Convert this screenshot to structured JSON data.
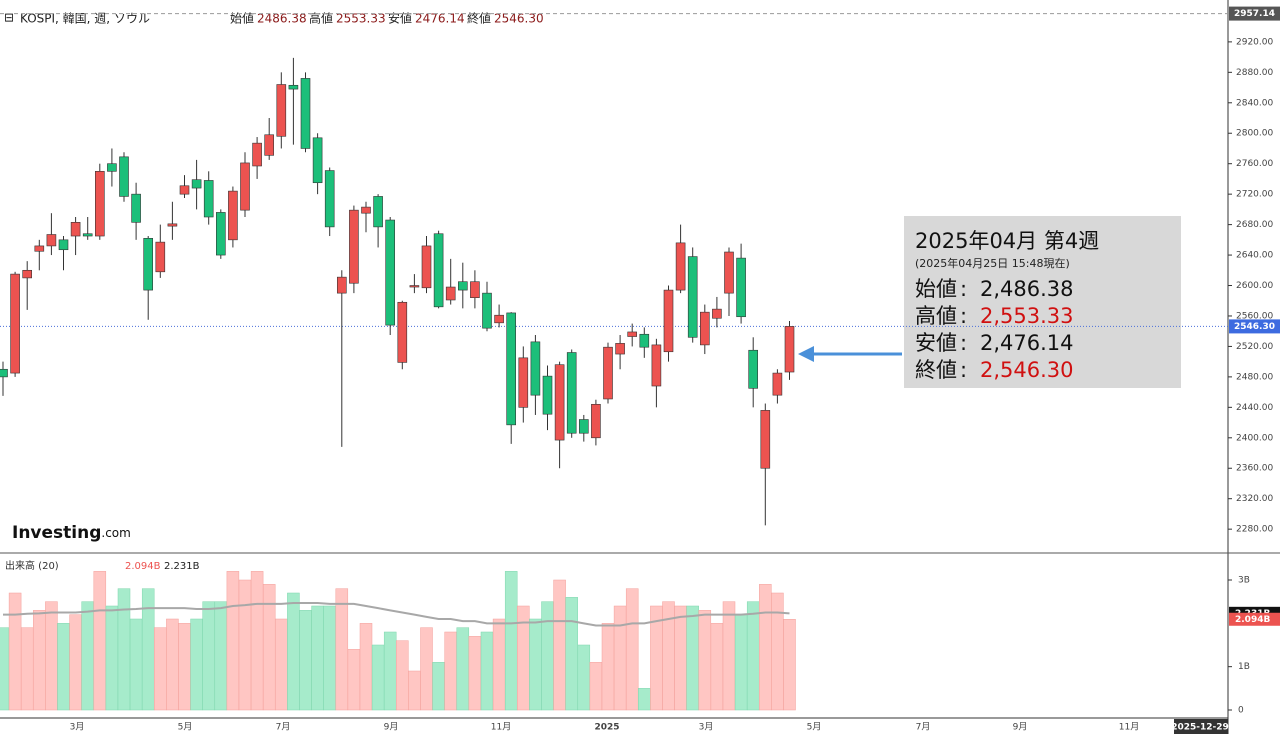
{
  "header": {
    "symbol": "KOSPI, 韓国, 週, ソウル",
    "ohlc": [
      {
        "label": "始値",
        "value": "2486.38"
      },
      {
        "label": "高値",
        "value": "2553.33"
      },
      {
        "label": "安値",
        "value": "2476.14"
      },
      {
        "label": "終値",
        "value": "2546.30"
      }
    ]
  },
  "logo": {
    "brand": "Investing",
    "suffix": ".com"
  },
  "x_labels": [
    "3月",
    "5月",
    "7月",
    "9月",
    "11月",
    "2025",
    "3月",
    "5月",
    "7月",
    "9月",
    "11月",
    "2025-12-29"
  ],
  "tooltip": {
    "title": "2025年04月 第4週",
    "subtitle": "(2025年04月25日 15:48現在)",
    "sep": ":",
    "rows": [
      {
        "label": "始値",
        "value": "2,486.38",
        "color": "#111111"
      },
      {
        "label": "高値",
        "value": "2,553.33",
        "color": "#d01010"
      },
      {
        "label": "安値",
        "value": "2,476.14",
        "color": "#111111"
      },
      {
        "label": "終値",
        "value": "2,546.30",
        "color": "#d01010"
      }
    ]
  },
  "chart_data": [
    {
      "type": "candlestick",
      "up_color": "#ec5350",
      "down_color": "#1cbf7a",
      "ylim": [
        2250,
        2975
      ],
      "yticks": [
        {
          "value": 2920,
          "label": "2920.00"
        },
        {
          "value": 2880,
          "label": "2880.00"
        },
        {
          "value": 2840,
          "label": "2840.00"
        },
        {
          "value": 2800,
          "label": "2800.00"
        },
        {
          "value": 2760,
          "label": "2760.00"
        },
        {
          "value": 2720,
          "label": "2720.00"
        },
        {
          "value": 2680,
          "label": "2680.00"
        },
        {
          "value": 2640,
          "label": "2640.00"
        },
        {
          "value": 2600,
          "label": "2600.00"
        },
        {
          "value": 2560,
          "label": "2560.00"
        },
        {
          "value": 2520,
          "label": "2520.00"
        },
        {
          "value": 2480,
          "label": "2480.00"
        },
        {
          "value": 2440,
          "label": "2440.00"
        },
        {
          "value": 2400,
          "label": "2400.00"
        },
        {
          "value": 2360,
          "label": "2360.00"
        },
        {
          "value": 2320,
          "label": "2320.00"
        },
        {
          "value": 2280,
          "label": "2280.00"
        }
      ],
      "high_marker": {
        "value": 2957.14,
        "label": "2957.14"
      },
      "last_price": {
        "value": 2546.3,
        "label": "2546.30"
      },
      "open": [
        2490,
        2485,
        2610,
        2645,
        2652,
        2660,
        2665,
        2668,
        2665,
        2760,
        2769,
        2720,
        2662,
        2618,
        2678,
        2720,
        2739,
        2738,
        2696,
        2660,
        2699,
        2757,
        2771,
        2796,
        2863,
        2872,
        2794,
        2751,
        2590,
        2603,
        2695,
        2717,
        2686,
        2499,
        2598,
        2597,
        2668,
        2581,
        2605,
        2584,
        2590,
        2551,
        2564,
        2440,
        2526,
        2481,
        2397,
        2512,
        2424,
        2400,
        2451,
        2510,
        2533,
        2536,
        2468,
        2513,
        2594,
        2638,
        2522,
        2557,
        2590,
        2636,
        2515,
        2360,
        2456,
        2486.38
      ],
      "high": [
        2500,
        2618,
        2632,
        2660,
        2695,
        2665,
        2690,
        2690,
        2760,
        2780,
        2775,
        2735,
        2665,
        2680,
        2710,
        2745,
        2765,
        2750,
        2700,
        2730,
        2775,
        2795,
        2820,
        2880,
        2899,
        2880,
        2800,
        2755,
        2620,
        2705,
        2710,
        2720,
        2690,
        2580,
        2615,
        2665,
        2672,
        2635,
        2630,
        2620,
        2605,
        2575,
        2565,
        2520,
        2535,
        2495,
        2500,
        2516,
        2430,
        2450,
        2525,
        2535,
        2550,
        2545,
        2530,
        2600,
        2680,
        2650,
        2575,
        2585,
        2650,
        2655,
        2532,
        2445,
        2490,
        2553.33
      ],
      "low": [
        2455,
        2480,
        2568,
        2620,
        2640,
        2620,
        2640,
        2660,
        2660,
        2730,
        2710,
        2660,
        2555,
        2610,
        2660,
        2715,
        2700,
        2680,
        2635,
        2650,
        2690,
        2740,
        2765,
        2780,
        2785,
        2775,
        2720,
        2665,
        2388,
        2590,
        2670,
        2650,
        2535,
        2490,
        2590,
        2590,
        2570,
        2575,
        2570,
        2570,
        2540,
        2545,
        2392,
        2420,
        2430,
        2410,
        2360,
        2400,
        2395,
        2390,
        2445,
        2490,
        2520,
        2505,
        2440,
        2500,
        2590,
        2525,
        2510,
        2545,
        2560,
        2550,
        2440,
        2285,
        2445,
        2476.14
      ],
      "close": [
        2480,
        2615,
        2620,
        2652,
        2667,
        2647,
        2683,
        2665,
        2750,
        2750,
        2717,
        2683,
        2594,
        2657,
        2681,
        2731,
        2728,
        2690,
        2640,
        2724,
        2761,
        2787,
        2798,
        2864,
        2858,
        2780,
        2735,
        2677,
        2611,
        2699,
        2703,
        2677,
        2548,
        2578,
        2600,
        2652,
        2572,
        2598,
        2594,
        2605,
        2544,
        2561,
        2417,
        2505,
        2456,
        2431,
        2496,
        2406,
        2406,
        2444,
        2519,
        2524,
        2539,
        2519,
        2522,
        2594,
        2656,
        2532,
        2565,
        2569,
        2644,
        2559,
        2465,
        2436,
        2485,
        2546.3
      ]
    },
    {
      "type": "bar",
      "title": "出来高 (20)",
      "legend_values": [
        {
          "value": 2.094,
          "label": "2.094B",
          "color": "#ec5350"
        },
        {
          "value": 2.231,
          "label": "2.231B",
          "color": "#222222"
        }
      ],
      "ylim": [
        0,
        3.6
      ],
      "yticks": [
        {
          "value": 3,
          "label": "3B"
        },
        {
          "value": 1,
          "label": "1B"
        },
        0
      ],
      "up_color": "#ffc6c3",
      "down_color": "#a6ebcb",
      "values": [
        1.9,
        2.7,
        1.9,
        2.3,
        2.5,
        2.0,
        2.2,
        2.5,
        3.2,
        2.4,
        2.8,
        2.1,
        2.8,
        1.9,
        2.1,
        2.0,
        2.1,
        2.5,
        2.5,
        3.2,
        3.0,
        3.2,
        2.9,
        2.1,
        2.7,
        2.3,
        2.4,
        2.4,
        2.8,
        1.4,
        2.0,
        1.5,
        1.8,
        1.6,
        0.9,
        1.9,
        1.1,
        1.8,
        1.9,
        1.7,
        1.8,
        2.1,
        3.2,
        2.4,
        2.1,
        2.5,
        3.0,
        2.6,
        1.5,
        1.1,
        2.0,
        2.4,
        2.8,
        0.5,
        2.4,
        2.5,
        2.4,
        2.4,
        2.3,
        2.0,
        2.5,
        2.2,
        2.5,
        2.9,
        2.7,
        2.094
      ],
      "series": [
        {
          "name": "MA(20)",
          "color": "#a8a8a8",
          "values": [
            2.2,
            2.2,
            2.22,
            2.23,
            2.25,
            2.25,
            2.25,
            2.27,
            2.3,
            2.3,
            2.32,
            2.33,
            2.35,
            2.35,
            2.35,
            2.35,
            2.33,
            2.33,
            2.35,
            2.4,
            2.42,
            2.45,
            2.45,
            2.45,
            2.47,
            2.47,
            2.47,
            2.45,
            2.45,
            2.45,
            2.4,
            2.35,
            2.3,
            2.25,
            2.2,
            2.15,
            2.1,
            2.1,
            2.05,
            2.05,
            2.0,
            2.0,
            2.0,
            2.02,
            2.02,
            2.05,
            2.05,
            2.05,
            2.0,
            1.95,
            1.95,
            1.95,
            2.0,
            2.0,
            2.05,
            2.1,
            2.15,
            2.17,
            2.2,
            2.2,
            2.2,
            2.2,
            2.22,
            2.25,
            2.25,
            2.231
          ]
        }
      ],
      "last_labels": [
        {
          "value": 2.231,
          "label": "2.231B",
          "color": "#111111"
        },
        {
          "value": 2.094,
          "label": "2.094B",
          "color": "#ec5350"
        }
      ]
    }
  ]
}
